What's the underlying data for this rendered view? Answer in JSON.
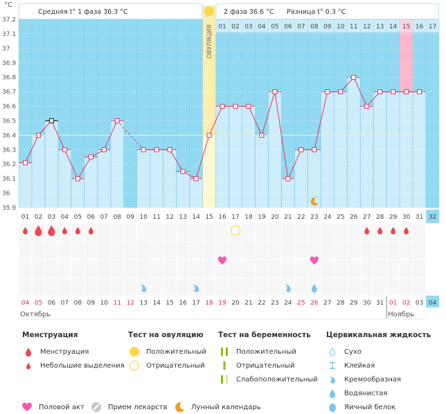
{
  "header": {
    "unit_label": "°C",
    "phase1_text": "Средняя t° 1 фаза 36.3 °C",
    "phase2_text": "2 фаза 36.6 °C",
    "diff_text": "Разница t° 0.3 °C",
    "ovulation_label": "ОВУЛЯЦИЯ"
  },
  "colors": {
    "sky": "#92d9f2",
    "bar": "#cdedfb",
    "ovulation": "#fdeeae",
    "ovulation_light": "#fff8d2",
    "highlight": "#ffb6cb",
    "line": "#e8325e",
    "coverline": "#f5eda0",
    "weekend": "#e0294f",
    "menses": "#f0444e",
    "heart": "#f858ad",
    "cervical": "#7ec5ee",
    "moon": "#f29a1b",
    "test_yellow": "#fbd84a",
    "pregnancy_green": "#8cbd12"
  },
  "chart_data": {
    "type": "line",
    "title": "",
    "xlabel": "День цикла",
    "ylabel": "°C",
    "ylim": [
      35.9,
      37.2
    ],
    "yticks": [
      "37.2",
      "37.1",
      "37",
      "36.9",
      "36.8",
      "36.7",
      "36.6",
      "36.5",
      "36.4",
      "36.3",
      "36.2",
      "36.1",
      "36",
      "35.9"
    ],
    "coverline": 36.4,
    "ovulation_day": 15,
    "highlight_day_phase2": 15,
    "cycle_days": [
      "01",
      "02",
      "03",
      "04",
      "05",
      "06",
      "07",
      "08",
      "09",
      "10",
      "11",
      "12",
      "13",
      "14",
      "15",
      "16",
      "17",
      "18",
      "19",
      "20",
      "21",
      "22",
      "23",
      "24",
      "25",
      "26",
      "27",
      "28",
      "29",
      "30",
      "31",
      "32"
    ],
    "current_day": "32",
    "phase2_days": [
      "01",
      "02",
      "03",
      "04",
      "05",
      "06",
      "07",
      "08",
      "09",
      "10",
      "11",
      "12",
      "13",
      "14",
      "15",
      "16",
      "17"
    ],
    "series": [
      {
        "name": "Базальная температура",
        "values": [
          36.21,
          36.4,
          36.5,
          36.3,
          36.1,
          36.25,
          36.3,
          36.5,
          null,
          36.3,
          36.3,
          36.3,
          36.15,
          36.1,
          36.4,
          36.6,
          36.6,
          36.6,
          36.4,
          36.7,
          36.1,
          36.3,
          36.3,
          36.7,
          36.7,
          36.8,
          36.6,
          36.7,
          36.7,
          36.7,
          36.7,
          null
        ]
      }
    ],
    "highlighted_point_day": 3,
    "calendar_dates": [
      "04",
      "05",
      "06",
      "07",
      "08",
      "09",
      "10",
      "11",
      "12",
      "13",
      "14",
      "15",
      "16",
      "17",
      "18",
      "19",
      "20",
      "21",
      "22",
      "23",
      "24",
      "25",
      "26",
      "27",
      "28",
      "29",
      "30",
      "31",
      "01",
      "02",
      "03",
      "04"
    ],
    "weekend_dates_idx": [
      0,
      1,
      7,
      8,
      14,
      15,
      21,
      22,
      28,
      29
    ],
    "months": [
      {
        "label": "Октябрь",
        "start_idx": 0
      },
      {
        "label": "Ноябрь",
        "start_idx": 28
      }
    ],
    "markers": {
      "menstruation": [
        2,
        3
      ],
      "spotting": [
        1,
        4,
        5,
        6,
        27,
        28,
        29,
        30
      ],
      "ovulation_test_negative": [
        17
      ],
      "intercourse": [
        16,
        23
      ],
      "cervical_creamy": [
        10,
        14,
        21
      ],
      "cervical_watery": [
        23
      ],
      "moon": [
        23
      ]
    }
  },
  "legend": {
    "menstruation": {
      "title": "Менструация",
      "items": [
        "Менструация",
        "Небольшие выделения"
      ]
    },
    "ovulation_test": {
      "title": "Тест на овуляцию",
      "items": [
        "Положительный",
        "Отрицательный"
      ]
    },
    "pregnancy_test": {
      "title": "Тест на беременность",
      "items": [
        "Положительный",
        "Отрицательный",
        "Слабоположительный"
      ]
    },
    "cervical": {
      "title": "Цервикальная жидкость",
      "items": [
        "Сухо",
        "Клейкая",
        "Кремообразная",
        "Водянистая",
        "Яичный белок"
      ]
    },
    "other": [
      "Половой акт",
      "Прием лекарств",
      "Лунный календарь"
    ]
  }
}
